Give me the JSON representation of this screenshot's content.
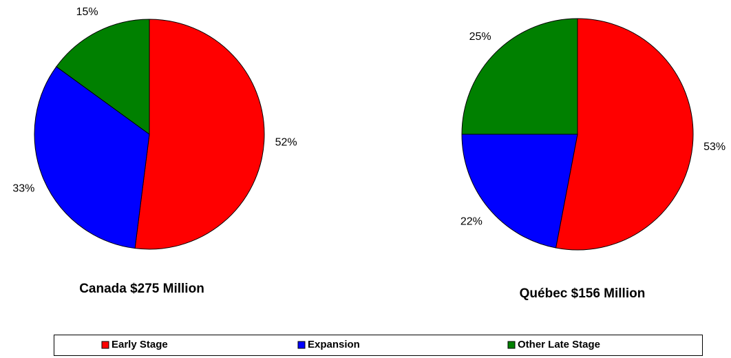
{
  "chart_data": [
    {
      "type": "pie",
      "title": "Canada $275 Million",
      "categories": [
        "Early Stage",
        "Expansion",
        "Other Late Stage"
      ],
      "values": [
        52,
        33,
        15
      ],
      "value_labels": [
        "52%",
        "33%",
        "15%"
      ],
      "colors": [
        "#ff0000",
        "#0000ff",
        "#008000"
      ]
    },
    {
      "type": "pie",
      "title": "Québec $156 Million",
      "categories": [
        "Early Stage",
        "Expansion",
        "Other Late Stage"
      ],
      "values": [
        53,
        22,
        25
      ],
      "value_labels": [
        "53%",
        "22%",
        "25%"
      ],
      "colors": [
        "#ff0000",
        "#0000ff",
        "#008000"
      ]
    }
  ]
}
